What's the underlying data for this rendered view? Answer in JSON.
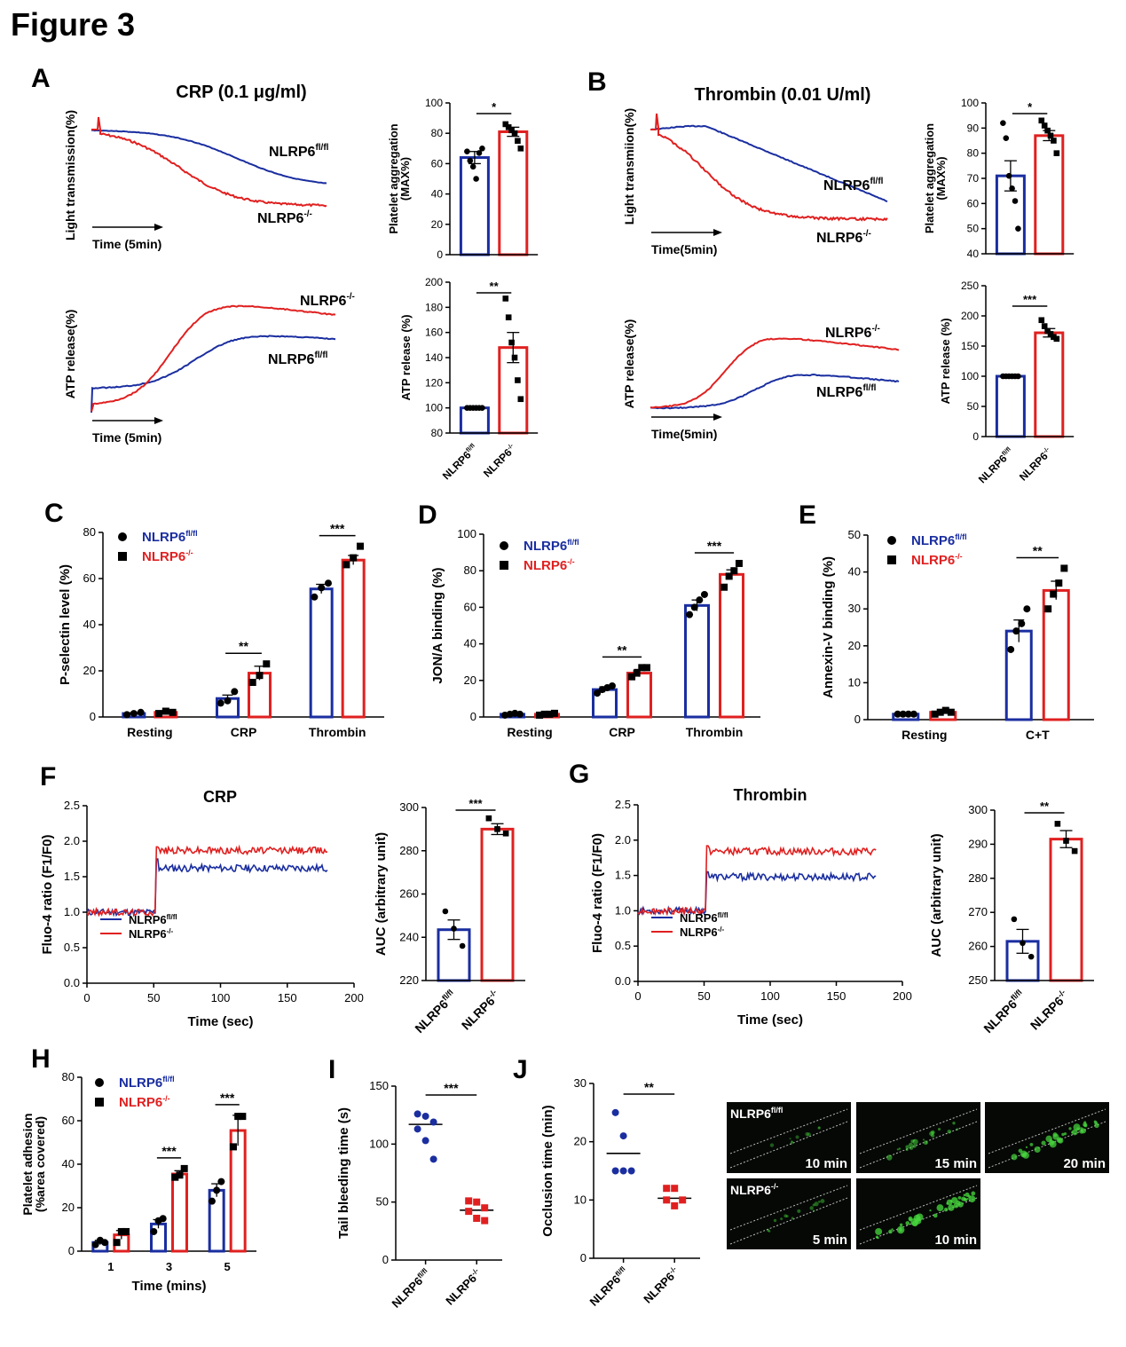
{
  "figure_title": "Figure 3",
  "colors": {
    "ctrl": "#1a2ea0",
    "ko": "#e02020",
    "ink": "#000000",
    "micro_bg": "#050805",
    "micro_green": "#46d43c"
  },
  "labels": {
    "fl": "NLRP6",
    "fl_sup": "fl/fl",
    "ko": "NLRP6",
    "ko_sup": "-/-"
  },
  "panels": {
    "A": {
      "letter": "A",
      "title": "CRP (0.1 μg/ml)",
      "trace1_ylabel": "Light transmission(%)",
      "trace1_time": "Time  (5min)",
      "trace2_ylabel": "ATP release(%)",
      "trace2_time": "Time  (5min)"
    },
    "B": {
      "letter": "B",
      "title": "Thrombin (0.01 U/ml)",
      "trace1_ylabel": "Light transmiion(%)",
      "trace1_time": "Time(5min)",
      "trace2_ylabel": "ATP release(%)",
      "trace2_time": "Time(5min)"
    },
    "C": {
      "letter": "C"
    },
    "D": {
      "letter": "D"
    },
    "E": {
      "letter": "E"
    },
    "F": {
      "letter": "F",
      "title": "CRP"
    },
    "G": {
      "letter": "G",
      "title": "Thrombin"
    },
    "H": {
      "letter": "H"
    },
    "I": {
      "letter": "I"
    },
    "J": {
      "letter": "J"
    }
  },
  "chart_data": [
    {
      "id": "A_agg_bar",
      "type": "bar",
      "ylabel": "Platelet aggregation (MAX%)",
      "ylim": [
        0,
        100
      ],
      "yticks": [
        0,
        20,
        40,
        60,
        80,
        100
      ],
      "categories": [
        "NLRP6 fl/fl",
        "NLRP6 -/-"
      ],
      "values": [
        64,
        81
      ],
      "errors": [
        4,
        3
      ],
      "significance": "*",
      "points": [
        [
          68,
          62,
          58,
          50,
          67,
          70
        ],
        [
          86,
          84,
          82,
          80,
          75,
          70
        ]
      ]
    },
    {
      "id": "A_atp_bar",
      "type": "bar",
      "ylabel": "ATP release (%)",
      "ylim": [
        80,
        200
      ],
      "yticks": [
        80,
        100,
        120,
        140,
        160,
        180,
        200
      ],
      "categories": [
        "NLRP6 fl/fl",
        "NLRP6 -/-"
      ],
      "values": [
        100,
        148
      ],
      "errors": [
        0,
        12
      ],
      "significance": "**",
      "points": [
        [
          100,
          100,
          100,
          100,
          100,
          100
        ],
        [
          187,
          172,
          152,
          140,
          122,
          107
        ]
      ]
    },
    {
      "id": "B_agg_bar",
      "type": "bar",
      "ylabel": "Platelet aggregation (MAX%)",
      "ylim": [
        40,
        100
      ],
      "yticks": [
        40,
        50,
        60,
        70,
        80,
        90,
        100
      ],
      "categories": [
        "NLRP6 fl/fl",
        "NLRP6 -/-"
      ],
      "values": [
        71,
        87
      ],
      "errors": [
        6,
        2
      ],
      "significance": "*",
      "points": [
        [
          92,
          86,
          71,
          66,
          61,
          50
        ],
        [
          93,
          91,
          89,
          87,
          85,
          80
        ]
      ]
    },
    {
      "id": "B_atp_bar",
      "type": "bar",
      "ylabel": "ATP release (%)",
      "ylim": [
        0,
        250
      ],
      "yticks": [
        0,
        50,
        100,
        150,
        200,
        250
      ],
      "categories": [
        "NLRP6 fl/fl",
        "NLRP6 -/-"
      ],
      "values": [
        100,
        172
      ],
      "errors": [
        0,
        7
      ],
      "significance": "***",
      "points": [
        [
          100,
          100,
          100,
          100,
          100,
          100
        ],
        [
          193,
          183,
          175,
          170,
          165,
          162
        ]
      ]
    },
    {
      "id": "C",
      "type": "bar",
      "ylabel": "P-selectin level (%)",
      "ylim": [
        0,
        80
      ],
      "yticks": [
        0,
        20,
        40,
        60,
        80
      ],
      "categories": [
        "Resting",
        "CRP",
        "Thrombin"
      ],
      "legend": "top-left",
      "series": [
        {
          "name": "NLRP6 fl/fl",
          "values": [
            1.5,
            8,
            55.5
          ],
          "errors": [
            0.3,
            1.5,
            2
          ],
          "points": [
            [
              1,
              1.5,
              2
            ],
            [
              6,
              7,
              11
            ],
            [
              52,
              56,
              58
            ]
          ]
        },
        {
          "name": "NLRP6 -/-",
          "values": [
            2,
            19,
            68
          ],
          "errors": [
            0.3,
            3,
            2
          ],
          "points": [
            [
              1.5,
              2.5,
              2
            ],
            [
              15,
              18,
              23
            ],
            [
              66,
              69,
              74
            ]
          ]
        }
      ],
      "significance": [
        {
          "group": 1,
          "text": "**"
        },
        {
          "group": 2,
          "text": "***"
        }
      ]
    },
    {
      "id": "D",
      "type": "bar",
      "ylabel": "JON/A binding (%)",
      "ylim": [
        0,
        100
      ],
      "yticks": [
        0,
        20,
        40,
        60,
        80,
        100
      ],
      "categories": [
        "Resting",
        "CRP",
        "Thrombin"
      ],
      "legend": "top-left",
      "series": [
        {
          "name": "NLRP6 fl/fl",
          "values": [
            1.5,
            15,
            61
          ],
          "errors": [
            0.3,
            1.5,
            3
          ],
          "points": [
            [
              1,
              1.5,
              2,
              1.5
            ],
            [
              13,
              15,
              16,
              17
            ],
            [
              56,
              60,
              64,
              67
            ]
          ]
        },
        {
          "name": "NLRP6 -/-",
          "values": [
            1.5,
            24,
            78
          ],
          "errors": [
            0.3,
            2,
            2.5
          ],
          "points": [
            [
              1,
              1.5,
              1.5,
              2
            ],
            [
              22,
              24,
              27,
              27
            ],
            [
              71,
              77,
              80,
              84
            ]
          ]
        }
      ],
      "significance": [
        {
          "group": 1,
          "text": "**"
        },
        {
          "group": 2,
          "text": "***"
        }
      ]
    },
    {
      "id": "E",
      "type": "bar",
      "ylabel": "Annexin-V binding (%)",
      "ylim": [
        0,
        50
      ],
      "yticks": [
        0,
        10,
        20,
        30,
        40,
        50
      ],
      "categories": [
        "Resting",
        "C+T"
      ],
      "legend": "top-left",
      "series": [
        {
          "name": "NLRP6 fl/fl",
          "values": [
            1.5,
            24
          ],
          "errors": [
            0.3,
            3
          ],
          "points": [
            [
              1.5,
              1.5,
              1.5,
              1.5
            ],
            [
              19,
              24,
              26,
              30
            ]
          ]
        },
        {
          "name": "NLRP6 -/-",
          "values": [
            2,
            35
          ],
          "errors": [
            0.3,
            2.5
          ],
          "points": [
            [
              1.5,
              2,
              2.5,
              2
            ],
            [
              30,
              34,
              37,
              41
            ]
          ]
        }
      ],
      "significance": [
        {
          "group": 1,
          "text": "**"
        }
      ]
    },
    {
      "id": "F_line",
      "type": "line",
      "xlabel": "Time (sec)",
      "ylabel": "Fluo-4 ratio (F1/F0)",
      "xlim": [
        0,
        200
      ],
      "ylim": [
        0,
        2.5
      ],
      "xticks": [
        0,
        50,
        100,
        150,
        200
      ],
      "yticks": [
        0.0,
        0.5,
        1.0,
        1.5,
        2.0,
        2.5
      ],
      "legend": "bottom-left",
      "series": [
        {
          "name": "NLRP6 fl/fl",
          "baseline": 1.0,
          "plateau": 1.62,
          "peak": 1.75,
          "rise_at": 52,
          "end": 180
        },
        {
          "name": "NLRP6 -/-",
          "baseline": 1.0,
          "plateau": 1.87,
          "peak": 1.92,
          "rise_at": 52,
          "end": 180
        }
      ]
    },
    {
      "id": "F_bar",
      "type": "bar",
      "ylabel": "AUC (arbitrary unit)",
      "ylim": [
        220,
        300
      ],
      "yticks": [
        220,
        240,
        260,
        280,
        300
      ],
      "categories": [
        "NLRP6 fl/fl",
        "NLRP6 -/-"
      ],
      "values": [
        243.5,
        290
      ],
      "errors": [
        4.5,
        2.5
      ],
      "significance": "***",
      "points": [
        [
          252,
          244,
          236
        ],
        [
          295,
          290,
          288
        ]
      ]
    },
    {
      "id": "G_line",
      "type": "line",
      "xlabel": "Time (sec)",
      "ylabel": "Fluo-4 ratio (F1/F0)",
      "xlim": [
        0,
        200
      ],
      "ylim": [
        0,
        2.5
      ],
      "xticks": [
        0,
        50,
        100,
        150,
        200
      ],
      "yticks": [
        0.0,
        0.5,
        1.0,
        1.5,
        2.0,
        2.5
      ],
      "legend": "bottom-left",
      "series": [
        {
          "name": "NLRP6 fl/fl",
          "baseline": 1.0,
          "plateau": 1.48,
          "peak": 1.55,
          "rise_at": 52,
          "end": 180
        },
        {
          "name": "NLRP6 -/-",
          "baseline": 1.0,
          "plateau": 1.84,
          "peak": 1.92,
          "rise_at": 52,
          "end": 180
        }
      ]
    },
    {
      "id": "G_bar",
      "type": "bar",
      "ylabel": "AUC (arbitrary unit)",
      "ylim": [
        250,
        300
      ],
      "yticks": [
        250,
        260,
        270,
        280,
        290,
        300
      ],
      "categories": [
        "NLRP6 fl/fl",
        "NLRP6 -/-"
      ],
      "values": [
        261.5,
        291.5
      ],
      "errors": [
        3.5,
        2.5
      ],
      "significance": "**",
      "points": [
        [
          268,
          261,
          257
        ],
        [
          296,
          291,
          288
        ]
      ]
    },
    {
      "id": "H",
      "type": "bar",
      "xlabel": "Time (mins)",
      "ylabel": "Platelet adhesion (%area covered)",
      "ylim": [
        0,
        80
      ],
      "yticks": [
        0,
        20,
        40,
        60,
        80
      ],
      "categories": [
        "1",
        "3",
        "5"
      ],
      "legend": "top-left",
      "series": [
        {
          "name": "NLRP6 fl/fl",
          "values": [
            4,
            12.5,
            28
          ],
          "errors": [
            1,
            2,
            3
          ],
          "points": [
            [
              3,
              5,
              4
            ],
            [
              9,
              14,
              15
            ],
            [
              23,
              28,
              32
            ]
          ]
        },
        {
          "name": "NLRP6 -/-",
          "values": [
            7.5,
            35.5,
            55.5
          ],
          "errors": [
            2,
            1.5,
            7
          ],
          "points": [
            [
              4,
              9,
              9
            ],
            [
              34,
              35,
              38
            ],
            [
              48,
              62,
              62
            ]
          ]
        }
      ],
      "significance": [
        {
          "group": 1,
          "text": "***"
        },
        {
          "group": 2,
          "text": "***"
        }
      ]
    },
    {
      "id": "I",
      "type": "scatter",
      "ylabel": "Tail bleeding time (s)",
      "ylim": [
        0,
        150
      ],
      "yticks": [
        0,
        50,
        100,
        150
      ],
      "categories": [
        "NLRP6 fl/fl",
        "NLRP6 -/-"
      ],
      "means": [
        117,
        43
      ],
      "significance": "***",
      "points": [
        [
          126,
          124,
          119,
          113,
          103,
          87
        ],
        [
          51,
          50,
          45,
          42,
          36,
          34
        ]
      ]
    },
    {
      "id": "J",
      "type": "scatter",
      "ylabel": "Occlusion time (min)",
      "ylim": [
        0,
        30
      ],
      "yticks": [
        0,
        10,
        20,
        30
      ],
      "categories": [
        "NLRP6 fl/fl",
        "NLRP6 -/-"
      ],
      "means": [
        18,
        10.3
      ],
      "significance": "**",
      "points": [
        [
          25,
          21,
          15,
          15,
          15
        ],
        [
          12,
          12,
          10,
          10,
          9
        ]
      ]
    }
  ],
  "micrographs": [
    {
      "label": "NLRP6 fl/fl",
      "time": "10 min",
      "intensity": 0.1
    },
    {
      "time": "15 min",
      "intensity": 0.4
    },
    {
      "time": "20 min",
      "intensity": 0.75
    },
    {
      "label": "NLRP6 -/-",
      "time": "5 min",
      "intensity": 0.2
    },
    {
      "time": "10 min",
      "intensity": 0.85
    }
  ]
}
